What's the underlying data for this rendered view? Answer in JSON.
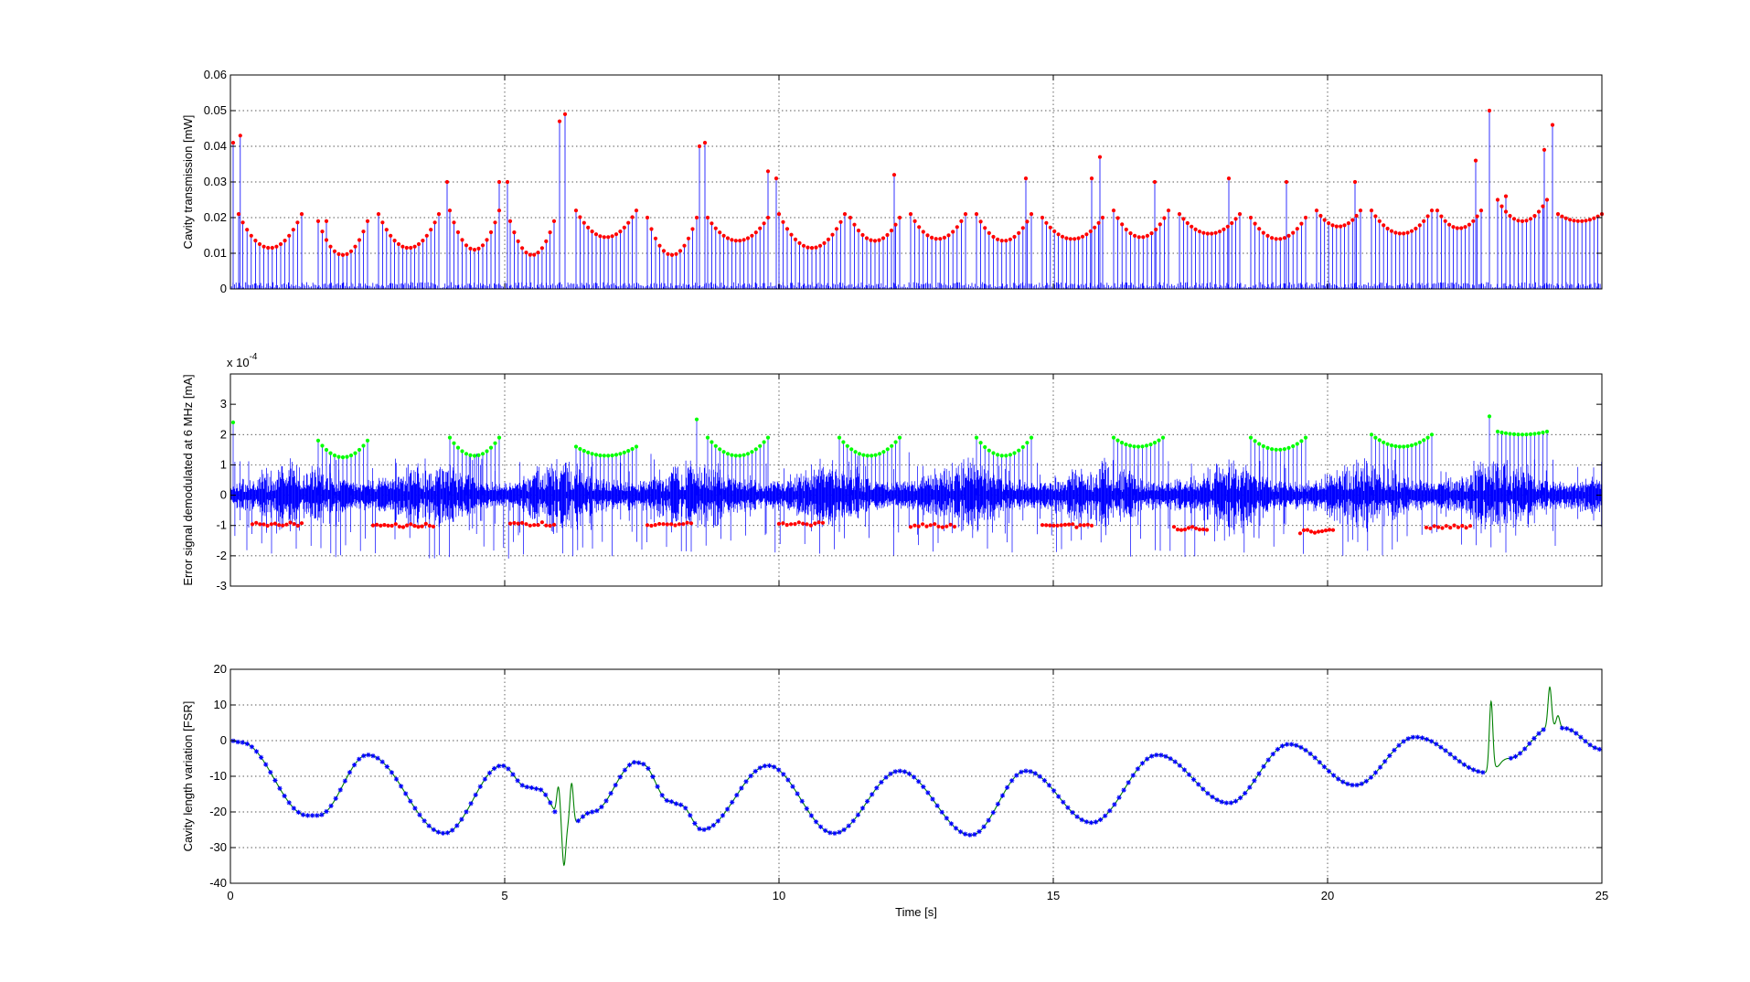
{
  "chart_data": [
    {
      "type": "line",
      "ylabel": "Cavity transmission [mW]",
      "xlim": [
        0,
        25
      ],
      "ylim": [
        0,
        0.06
      ],
      "xticks": [
        0,
        5,
        10,
        15,
        20,
        25
      ],
      "yticks": [
        0,
        0.01,
        0.02,
        0.03,
        0.04,
        0.05,
        0.06
      ],
      "yticklabels": [
        "0",
        "0.01",
        "0.02",
        "0.03",
        "0.04",
        "0.05",
        "0.06"
      ],
      "xticklabels": [
        "",
        "",
        "",
        "",
        "",
        ""
      ],
      "grid": true,
      "colors": {
        "series": "#0000ff",
        "peaks": "#ff0000"
      },
      "groups": [
        {
          "x0": 0.15,
          "x1": 1.3,
          "ymin": 0.0115,
          "yedge": 0.021
        },
        {
          "x0": 1.6,
          "x1": 2.5,
          "ymin": 0.0095,
          "yedge": 0.019
        },
        {
          "x0": 2.7,
          "x1": 3.8,
          "ymin": 0.0115,
          "yedge": 0.021
        },
        {
          "x0": 4.0,
          "x1": 4.9,
          "ymin": 0.011,
          "yedge": 0.022
        },
        {
          "x0": 5.1,
          "x1": 5.9,
          "ymin": 0.0095,
          "yedge": 0.019
        },
        {
          "x0": 6.3,
          "x1": 7.4,
          "ymin": 0.0145,
          "yedge": 0.022
        },
        {
          "x0": 7.6,
          "x1": 8.5,
          "ymin": 0.0095,
          "yedge": 0.02
        },
        {
          "x0": 8.7,
          "x1": 9.8,
          "ymin": 0.0135,
          "yedge": 0.02
        },
        {
          "x0": 10.0,
          "x1": 11.2,
          "ymin": 0.0115,
          "yedge": 0.021
        },
        {
          "x0": 11.3,
          "x1": 12.2,
          "ymin": 0.0135,
          "yedge": 0.02
        },
        {
          "x0": 12.4,
          "x1": 13.4,
          "ymin": 0.014,
          "yedge": 0.021
        },
        {
          "x0": 13.6,
          "x1": 14.6,
          "ymin": 0.0135,
          "yedge": 0.021
        },
        {
          "x0": 14.8,
          "x1": 15.9,
          "ymin": 0.014,
          "yedge": 0.02
        },
        {
          "x0": 16.1,
          "x1": 17.1,
          "ymin": 0.0145,
          "yedge": 0.022
        },
        {
          "x0": 17.3,
          "x1": 18.4,
          "ymin": 0.0155,
          "yedge": 0.021
        },
        {
          "x0": 18.6,
          "x1": 19.6,
          "ymin": 0.014,
          "yedge": 0.02
        },
        {
          "x0": 19.8,
          "x1": 20.6,
          "ymin": 0.0175,
          "yedge": 0.022
        },
        {
          "x0": 20.8,
          "x1": 21.9,
          "ymin": 0.0155,
          "yedge": 0.022
        },
        {
          "x0": 22.0,
          "x1": 22.8,
          "ymin": 0.017,
          "yedge": 0.022
        },
        {
          "x0": 23.1,
          "x1": 24.0,
          "ymin": 0.019,
          "yedge": 0.025
        },
        {
          "x0": 24.2,
          "x1": 25.0,
          "ymin": 0.019,
          "yedge": 0.021
        }
      ],
      "spikes": [
        {
          "x": 0.05,
          "y": 0.041
        },
        {
          "x": 0.18,
          "y": 0.043
        },
        {
          "x": 1.75,
          "y": 0.019
        },
        {
          "x": 3.95,
          "y": 0.03
        },
        {
          "x": 4.9,
          "y": 0.03
        },
        {
          "x": 5.05,
          "y": 0.03
        },
        {
          "x": 6.0,
          "y": 0.047
        },
        {
          "x": 6.1,
          "y": 0.049
        },
        {
          "x": 8.55,
          "y": 0.04
        },
        {
          "x": 8.65,
          "y": 0.041
        },
        {
          "x": 9.8,
          "y": 0.033
        },
        {
          "x": 9.95,
          "y": 0.031
        },
        {
          "x": 12.1,
          "y": 0.032
        },
        {
          "x": 14.5,
          "y": 0.031
        },
        {
          "x": 15.7,
          "y": 0.031
        },
        {
          "x": 15.85,
          "y": 0.037
        },
        {
          "x": 16.85,
          "y": 0.03
        },
        {
          "x": 18.2,
          "y": 0.031
        },
        {
          "x": 19.25,
          "y": 0.03
        },
        {
          "x": 20.5,
          "y": 0.03
        },
        {
          "x": 22.7,
          "y": 0.036
        },
        {
          "x": 22.95,
          "y": 0.05
        },
        {
          "x": 23.25,
          "y": 0.026
        },
        {
          "x": 23.95,
          "y": 0.039
        },
        {
          "x": 24.1,
          "y": 0.046
        }
      ]
    },
    {
      "type": "line",
      "ylabel": "Error signal demodulated at 6 MHz [mA]",
      "multiplier": "x 10",
      "multiplier_exponent": "-4",
      "xlim": [
        0,
        25
      ],
      "ylim": [
        -3,
        4
      ],
      "xticks": [
        0,
        5,
        10,
        15,
        20,
        25
      ],
      "yticks": [
        -3,
        -2,
        -1,
        0,
        1,
        2,
        3
      ],
      "yticklabels": [
        "-3",
        "-2",
        "-1",
        "0",
        "1",
        "2",
        "3"
      ],
      "xticklabels": [
        "",
        "",
        "",
        "",
        "",
        ""
      ],
      "grid": true,
      "colors": {
        "series": "#0000ff",
        "positive_peaks": "#00ff00",
        "negative_peaks": "#ff0000"
      },
      "positive_groups": [
        {
          "x0": 1.6,
          "x1": 2.5,
          "ymin": 1.25,
          "yedge": 1.8
        },
        {
          "x0": 4.0,
          "x1": 4.9,
          "ymin": 1.3,
          "yedge": 1.9
        },
        {
          "x0": 6.3,
          "x1": 7.4,
          "ymin": 1.3,
          "yedge": 1.6
        },
        {
          "x0": 8.7,
          "x1": 9.8,
          "ymin": 1.3,
          "yedge": 1.9
        },
        {
          "x0": 11.1,
          "x1": 12.2,
          "ymin": 1.3,
          "yedge": 1.9
        },
        {
          "x0": 13.6,
          "x1": 14.6,
          "ymin": 1.3,
          "yedge": 1.9
        },
        {
          "x0": 16.1,
          "x1": 17.0,
          "ymin": 1.6,
          "yedge": 1.9
        },
        {
          "x0": 18.6,
          "x1": 19.6,
          "ymin": 1.5,
          "yedge": 1.9
        },
        {
          "x0": 20.8,
          "x1": 21.9,
          "ymin": 1.6,
          "yedge": 2.0
        },
        {
          "x0": 23.1,
          "x1": 24.0,
          "ymin": 2.0,
          "yedge": 2.1
        }
      ],
      "negative_groups": [
        {
          "x0": 0.4,
          "x1": 1.3,
          "yval": -0.95
        },
        {
          "x0": 2.6,
          "x1": 3.7,
          "yval": -1.0
        },
        {
          "x0": 5.1,
          "x1": 5.9,
          "yval": -0.95
        },
        {
          "x0": 7.6,
          "x1": 8.4,
          "yval": -0.95
        },
        {
          "x0": 10.0,
          "x1": 10.8,
          "yval": -0.95
        },
        {
          "x0": 12.4,
          "x1": 13.2,
          "yval": -1.0
        },
        {
          "x0": 14.8,
          "x1": 15.7,
          "yval": -1.0
        },
        {
          "x0": 17.2,
          "x1": 17.8,
          "yval": -1.1
        },
        {
          "x0": 19.5,
          "x1": 20.1,
          "yval": -1.2
        },
        {
          "x0": 21.8,
          "x1": 22.6,
          "yval": -1.05
        }
      ],
      "spikes": [
        {
          "x": 0.05,
          "y": 2.4
        },
        {
          "x": 8.5,
          "y": 2.5
        },
        {
          "x": 22.95,
          "y": 2.6
        }
      ]
    },
    {
      "type": "line",
      "xlabel": "Time [s]",
      "ylabel": "Cavity length  variation [FSR]",
      "xlim": [
        0,
        25
      ],
      "ylim": [
        -40,
        20
      ],
      "xticks": [
        0,
        5,
        10,
        15,
        20,
        25
      ],
      "yticks": [
        -40,
        -30,
        -20,
        -10,
        0,
        10,
        20
      ],
      "xticklabels": [
        "0",
        "5",
        "10",
        "15",
        "20",
        "25"
      ],
      "yticklabels": [
        "-40",
        "-30",
        "-20",
        "-10",
        "0",
        "10",
        "20"
      ],
      "grid": true,
      "colors": {
        "line": "#008000",
        "markers": "#0000ff"
      },
      "keypoints": [
        {
          "x": 0,
          "y": 0
        },
        {
          "x": 0.2,
          "y": -0.5
        },
        {
          "x": 1.4,
          "y": -21
        },
        {
          "x": 1.6,
          "y": -21
        },
        {
          "x": 2.5,
          "y": -4
        },
        {
          "x": 3.9,
          "y": -26
        },
        {
          "x": 4.95,
          "y": -7
        },
        {
          "x": 5.4,
          "y": -13
        },
        {
          "x": 5.6,
          "y": -13.5
        },
        {
          "x": 6.15,
          "y": -24
        },
        {
          "x": 6.6,
          "y": -20
        },
        {
          "x": 7.4,
          "y": -6
        },
        {
          "x": 7.5,
          "y": -6.5
        },
        {
          "x": 8.0,
          "y": -17
        },
        {
          "x": 8.2,
          "y": -18
        },
        {
          "x": 8.6,
          "y": -25
        },
        {
          "x": 9.8,
          "y": -7
        },
        {
          "x": 11.0,
          "y": -26
        },
        {
          "x": 12.2,
          "y": -8.5
        },
        {
          "x": 13.5,
          "y": -26.5
        },
        {
          "x": 14.5,
          "y": -8.5
        },
        {
          "x": 15.7,
          "y": -23
        },
        {
          "x": 16.9,
          "y": -4
        },
        {
          "x": 18.2,
          "y": -17.5
        },
        {
          "x": 19.3,
          "y": -1
        },
        {
          "x": 20.5,
          "y": -12.5
        },
        {
          "x": 21.6,
          "y": 1
        },
        {
          "x": 22.9,
          "y": -9
        },
        {
          "x": 23.3,
          "y": -5
        },
        {
          "x": 24.1,
          "y": 4
        },
        {
          "x": 24.3,
          "y": 3.5
        },
        {
          "x": 25,
          "y": -2.5
        }
      ],
      "bumps": [
        {
          "x": 5.98,
          "y": -13
        },
        {
          "x": 6.08,
          "y": -35
        },
        {
          "x": 6.22,
          "y": -12
        },
        {
          "x": 22.98,
          "y": 11
        },
        {
          "x": 23.12,
          "y": -7
        },
        {
          "x": 24.05,
          "y": 15
        },
        {
          "x": 24.2,
          "y": 7
        }
      ],
      "marker_gap": {
        "x0": 5.95,
        "x1": 6.3
      }
    }
  ]
}
